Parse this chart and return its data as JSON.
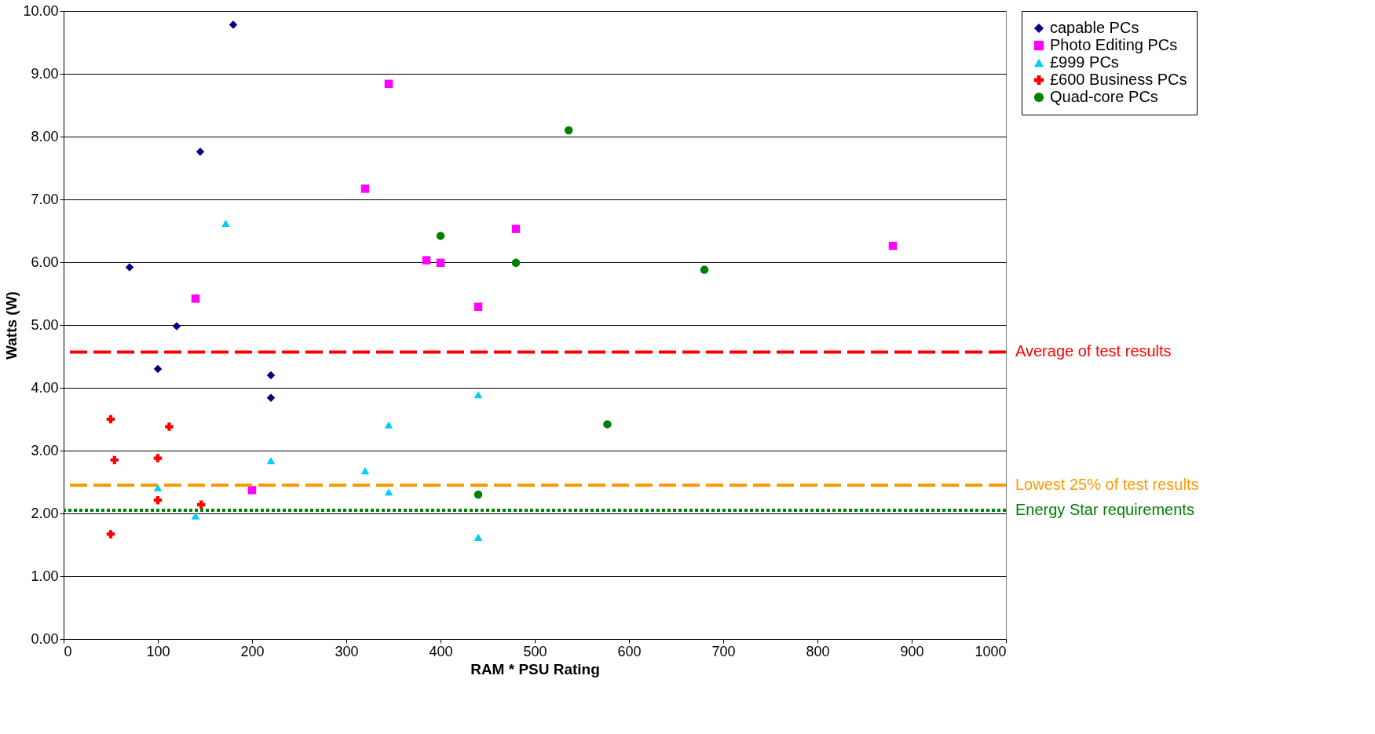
{
  "chart_data": {
    "type": "scatter",
    "xlabel": "RAM * PSU Rating",
    "ylabel": "Watts (W)",
    "xlim": [
      0,
      1000
    ],
    "xticks": [
      0,
      100,
      200,
      300,
      400,
      500,
      600,
      700,
      800,
      900,
      1000
    ],
    "ylim": [
      0,
      10
    ],
    "yticks": [
      {
        "value": 0,
        "label": "0.00"
      },
      {
        "value": 1,
        "label": "1.00"
      },
      {
        "value": 2,
        "label": "2.00"
      },
      {
        "value": 3,
        "label": "3.00"
      },
      {
        "value": 4,
        "label": "4.00"
      },
      {
        "value": 5,
        "label": "5.00"
      },
      {
        "value": 6,
        "label": "6.00"
      },
      {
        "value": 7,
        "label": "7.00"
      },
      {
        "value": 8,
        "label": "8.00"
      },
      {
        "value": 9,
        "label": "9.00"
      },
      {
        "value": 10,
        "label": "10.00"
      }
    ],
    "grid": "y",
    "legend": "right",
    "series": [
      {
        "name": "capable PCs",
        "color": "#000080",
        "marker": "diamond",
        "x": [
          70,
          100,
          120,
          145,
          180,
          220,
          220
        ],
        "values": [
          5.92,
          4.3,
          4.98,
          7.76,
          9.78,
          4.2,
          3.84
        ]
      },
      {
        "name": "Photo Editing PCs",
        "color": "#ff00ff",
        "marker": "square",
        "x": [
          140,
          200,
          320,
          345,
          385,
          400,
          440,
          480,
          880
        ],
        "values": [
          5.42,
          2.37,
          7.17,
          8.84,
          6.03,
          5.99,
          5.29,
          6.53,
          6.26
        ]
      },
      {
        "name": "£999 PCs",
        "color": "#00ccff",
        "marker": "triangle",
        "x": [
          172,
          100,
          140,
          220,
          320,
          345,
          345,
          440,
          440
        ],
        "values": [
          6.62,
          2.41,
          1.96,
          2.84,
          2.68,
          3.41,
          2.34,
          3.89,
          1.62
        ]
      },
      {
        "name": "£600 Business PCs",
        "color": "#ff0000",
        "marker": "cross",
        "x": [
          50,
          54,
          100,
          112,
          100,
          146,
          50
        ],
        "values": [
          3.5,
          2.85,
          2.88,
          3.38,
          2.21,
          2.14,
          1.67
        ]
      },
      {
        "name": "Quad-core PCs",
        "color": "#008000",
        "marker": "circle",
        "x": [
          400,
          480,
          536,
          680,
          577,
          440
        ],
        "values": [
          6.42,
          5.99,
          8.1,
          5.88,
          3.42,
          2.3
        ]
      }
    ],
    "ref_lines": [
      {
        "axis": "y",
        "value": 4.57,
        "label": "Average of test results",
        "color": "#ff0000",
        "line_style": "dashed"
      },
      {
        "axis": "y",
        "value": 2.45,
        "label": "Lowest 25% of test results",
        "color": "#ff9900",
        "line_style": "dashed"
      },
      {
        "axis": "y",
        "value": 2.05,
        "label": "Energy Star requirements",
        "color": "#008000",
        "line_style": "dotted"
      }
    ]
  }
}
